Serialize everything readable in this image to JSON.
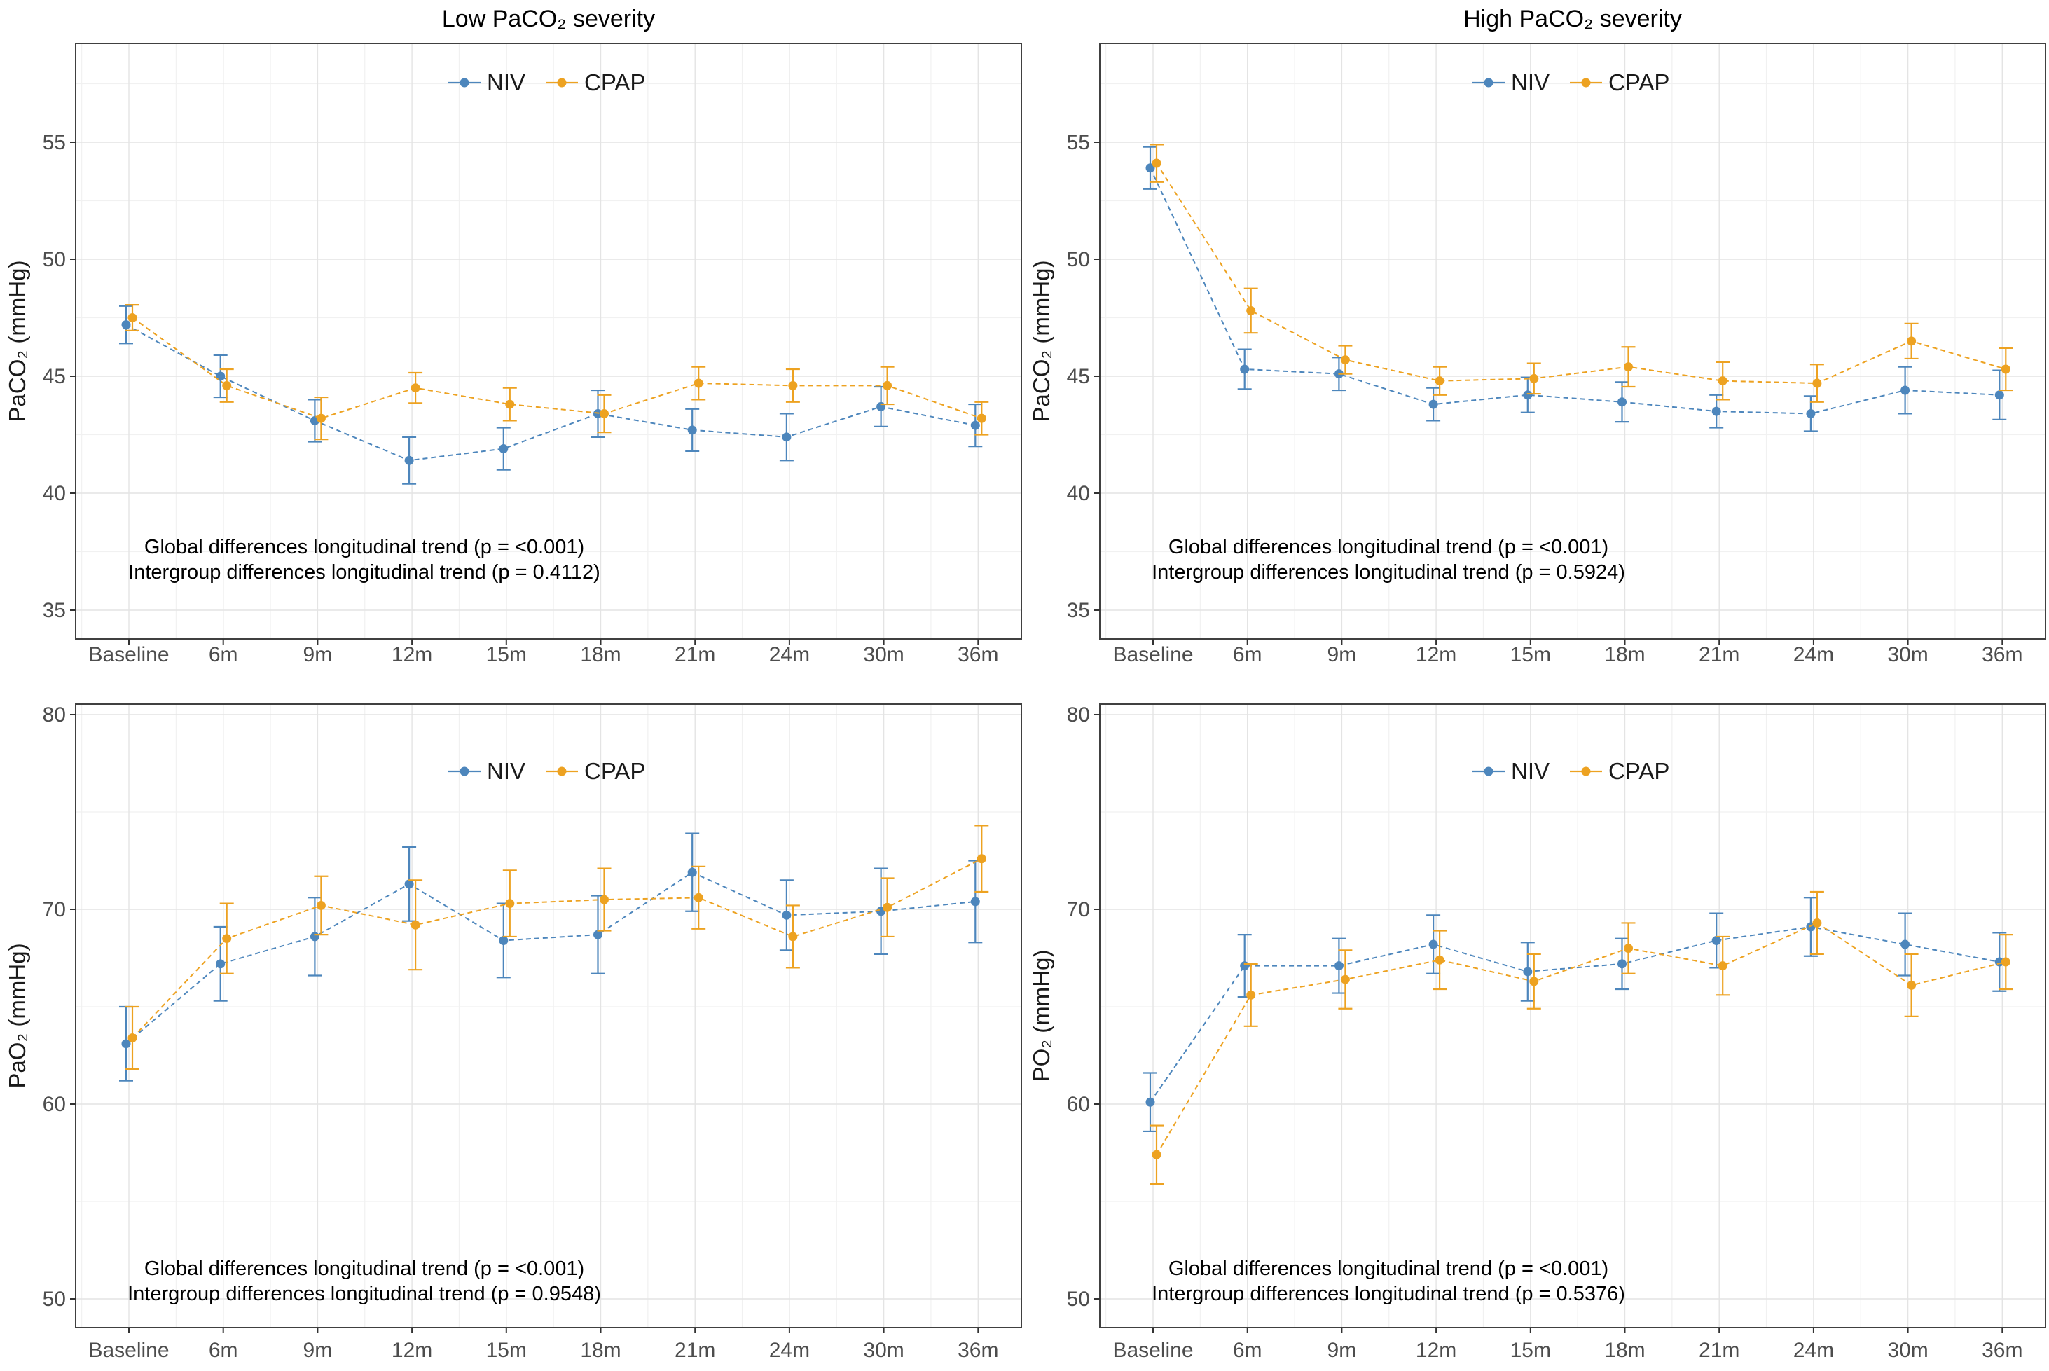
{
  "figure": {
    "background": "#FFFFFF",
    "niv_color": "#4D86BC",
    "cpap_color": "#EDA221",
    "panel_titles": [
      "Low PaCO₂ severity",
      "High PaCO₂ severity"
    ]
  },
  "chart_data": [
    {
      "type": "line",
      "title": "Low PaCO₂ severity",
      "xlabel": "",
      "ylabel": "PaCO₂ (mmHg)",
      "ylim": [
        33.8,
        59.2
      ],
      "yticks": [
        35,
        40,
        45,
        50,
        55
      ],
      "grid": "major+minor",
      "legend_position": "top-center",
      "categories": [
        "Baseline",
        "6m",
        "9m",
        "12m",
        "15m",
        "18m",
        "21m",
        "24m",
        "30m",
        "36m"
      ],
      "series": [
        {
          "name": "NIV",
          "color": "#4D86BC",
          "values": [
            47.2,
            45.0,
            43.1,
            41.4,
            41.9,
            43.4,
            42.7,
            42.4,
            43.7,
            42.9
          ],
          "errors": [
            0.8,
            0.9,
            0.9,
            1.0,
            0.9,
            1.0,
            0.9,
            1.0,
            0.85,
            0.9
          ]
        },
        {
          "name": "CPAP",
          "color": "#EDA221",
          "values": [
            47.5,
            44.6,
            43.2,
            44.5,
            43.8,
            43.4,
            44.7,
            44.6,
            44.6,
            43.2
          ],
          "errors": [
            0.55,
            0.7,
            0.9,
            0.65,
            0.7,
            0.8,
            0.7,
            0.7,
            0.8,
            0.7
          ]
        }
      ],
      "annotations": [
        "Global differences longitudinal trend (p = <0.001)",
        "Intergroup differences longitudinal trend (p = 0.4112)"
      ]
    },
    {
      "type": "line",
      "title": "High PaCO₂ severity",
      "xlabel": "",
      "ylabel": "PaCO₂ (mmHg)",
      "ylim": [
        33.8,
        59.2
      ],
      "yticks": [
        35,
        40,
        45,
        50,
        55
      ],
      "grid": "major+minor",
      "legend_position": "top-center",
      "categories": [
        "Baseline",
        "6m",
        "9m",
        "12m",
        "15m",
        "18m",
        "21m",
        "24m",
        "30m",
        "36m"
      ],
      "series": [
        {
          "name": "NIV",
          "color": "#4D86BC",
          "values": [
            53.9,
            45.3,
            45.1,
            43.8,
            44.2,
            43.9,
            43.5,
            43.4,
            44.4,
            44.2
          ],
          "errors": [
            0.9,
            0.85,
            0.7,
            0.7,
            0.75,
            0.85,
            0.7,
            0.75,
            1.0,
            1.05
          ]
        },
        {
          "name": "CPAP",
          "color": "#EDA221",
          "values": [
            54.1,
            47.8,
            45.7,
            44.8,
            44.9,
            45.4,
            44.8,
            44.7,
            46.5,
            45.3
          ],
          "errors": [
            0.8,
            0.95,
            0.6,
            0.6,
            0.65,
            0.85,
            0.8,
            0.8,
            0.75,
            0.9
          ]
        }
      ],
      "annotations": [
        "Global differences longitudinal trend (p = <0.001)",
        "Intergroup differences longitudinal trend (p = 0.5924)"
      ]
    },
    {
      "type": "line",
      "title": "",
      "xlabel": "",
      "ylabel": "PaO₂ (mmHg)",
      "ylim": [
        48.5,
        80.5
      ],
      "yticks": [
        50,
        60,
        70,
        80
      ],
      "grid": "major+minor",
      "legend_position": "top-center",
      "categories": [
        "Baseline",
        "6m",
        "9m",
        "12m",
        "15m",
        "18m",
        "21m",
        "24m",
        "30m",
        "36m"
      ],
      "series": [
        {
          "name": "NIV",
          "color": "#4D86BC",
          "values": [
            63.1,
            67.2,
            68.6,
            71.3,
            68.4,
            68.7,
            71.9,
            69.7,
            69.9,
            70.4
          ],
          "errors": [
            1.9,
            1.9,
            2.0,
            1.9,
            1.9,
            2.0,
            2.0,
            1.8,
            2.2,
            2.1
          ]
        },
        {
          "name": "CPAP",
          "color": "#EDA221",
          "values": [
            63.4,
            68.5,
            70.2,
            69.2,
            70.3,
            70.5,
            70.6,
            68.6,
            70.1,
            72.6
          ],
          "errors": [
            1.6,
            1.8,
            1.5,
            2.3,
            1.7,
            1.6,
            1.6,
            1.6,
            1.5,
            1.7
          ]
        }
      ],
      "annotations": [
        "Global differences longitudinal trend (p = <0.001)",
        "Intergroup differences longitudinal trend (p = 0.9548)"
      ]
    },
    {
      "type": "line",
      "title": "",
      "xlabel": "",
      "ylabel": "PO₂ (mmHg)",
      "ylim": [
        48.5,
        80.5
      ],
      "yticks": [
        50,
        60,
        70,
        80
      ],
      "grid": "major+minor",
      "legend_position": "top-center",
      "categories": [
        "Baseline",
        "6m",
        "9m",
        "12m",
        "15m",
        "18m",
        "21m",
        "24m",
        "30m",
        "36m"
      ],
      "series": [
        {
          "name": "NIV",
          "color": "#4D86BC",
          "values": [
            60.1,
            67.1,
            67.1,
            68.2,
            66.8,
            67.2,
            68.4,
            69.1,
            68.2,
            67.3
          ],
          "errors": [
            1.5,
            1.6,
            1.4,
            1.5,
            1.5,
            1.3,
            1.4,
            1.5,
            1.6,
            1.5
          ]
        },
        {
          "name": "CPAP",
          "color": "#EDA221",
          "values": [
            57.4,
            65.6,
            66.4,
            67.4,
            66.3,
            68.0,
            67.1,
            69.3,
            66.1,
            67.3
          ],
          "errors": [
            1.5,
            1.6,
            1.5,
            1.5,
            1.4,
            1.3,
            1.5,
            1.6,
            1.6,
            1.4
          ]
        }
      ],
      "annotations": [
        "Global differences longitudinal trend (p = <0.001)",
        "Intergroup differences longitudinal trend (p = 0.5376)"
      ]
    }
  ]
}
